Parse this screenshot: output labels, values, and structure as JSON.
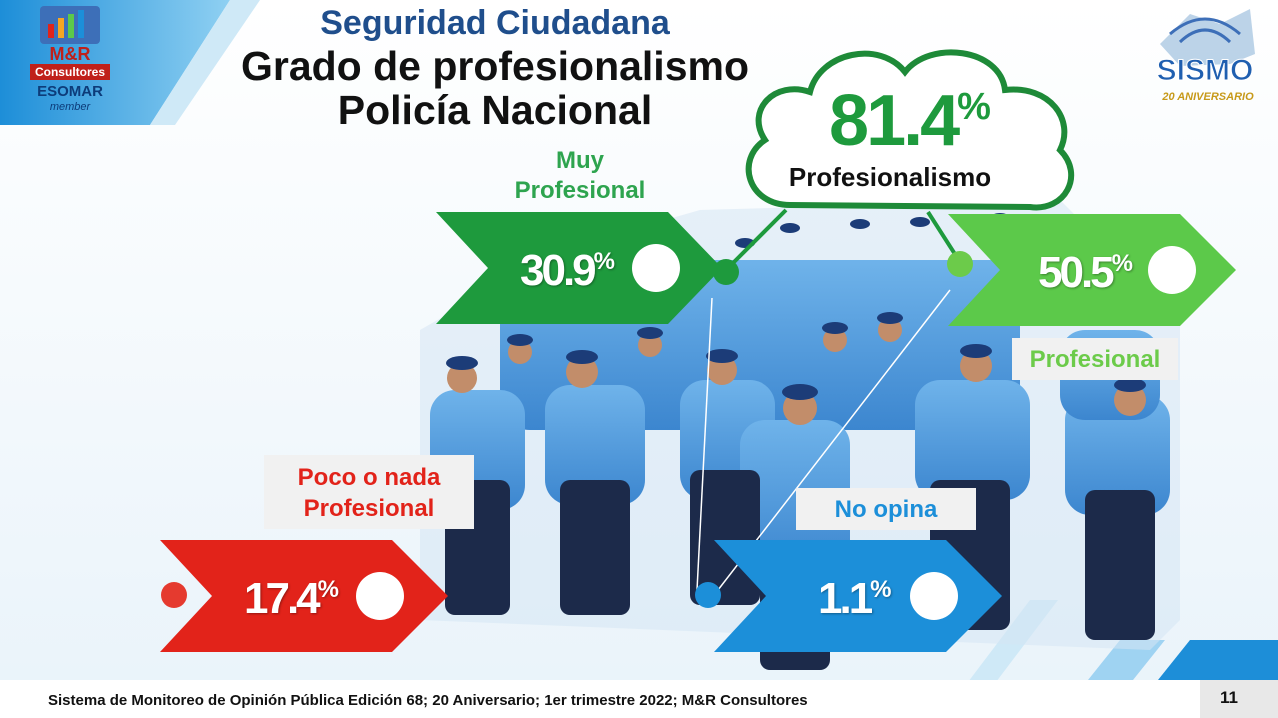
{
  "header": {
    "topic": "Seguridad Ciudadana",
    "title_line1": "Grado de profesionalismo",
    "title_line2": "Policía Nacional"
  },
  "logos": {
    "left_brand_line1": "M&R",
    "left_brand_line2": "Consultores",
    "left_brand_line3": "ESOMAR",
    "left_brand_line4": "member",
    "right_brand": "SISMO",
    "right_brand_sub": "20 ANIVERSARIO"
  },
  "summary": {
    "value": "81.4",
    "unit": "%",
    "label": "Profesionalismo"
  },
  "chart_data": {
    "type": "bar",
    "categories": [
      "Muy Profesional",
      "Profesional",
      "Poco o nada Profesional",
      "No opina"
    ],
    "values": [
      30.9,
      50.5,
      17.4,
      1.1
    ],
    "unit": "%",
    "labels": {
      "muy_l1": "Muy",
      "muy_l2": "Profesional",
      "prof": "Profesional",
      "poco_l1": "Poco o nada",
      "poco_l2": "Profesional",
      "noop": "No opina"
    },
    "display": {
      "muy": "30.9",
      "prof": "50.5",
      "poco": "17.4",
      "noop": "1.1"
    },
    "colors": {
      "muy": "#1e9a3d",
      "prof": "#5cc94a",
      "poco": "#e2231a",
      "noop": "#1c8fd9"
    }
  },
  "footer": {
    "source": "Sistema de Monitoreo de Opinión Pública  Edición 68; 20 Aniversario;  1er trimestre 2022; M&R Consultores",
    "page": "11"
  }
}
